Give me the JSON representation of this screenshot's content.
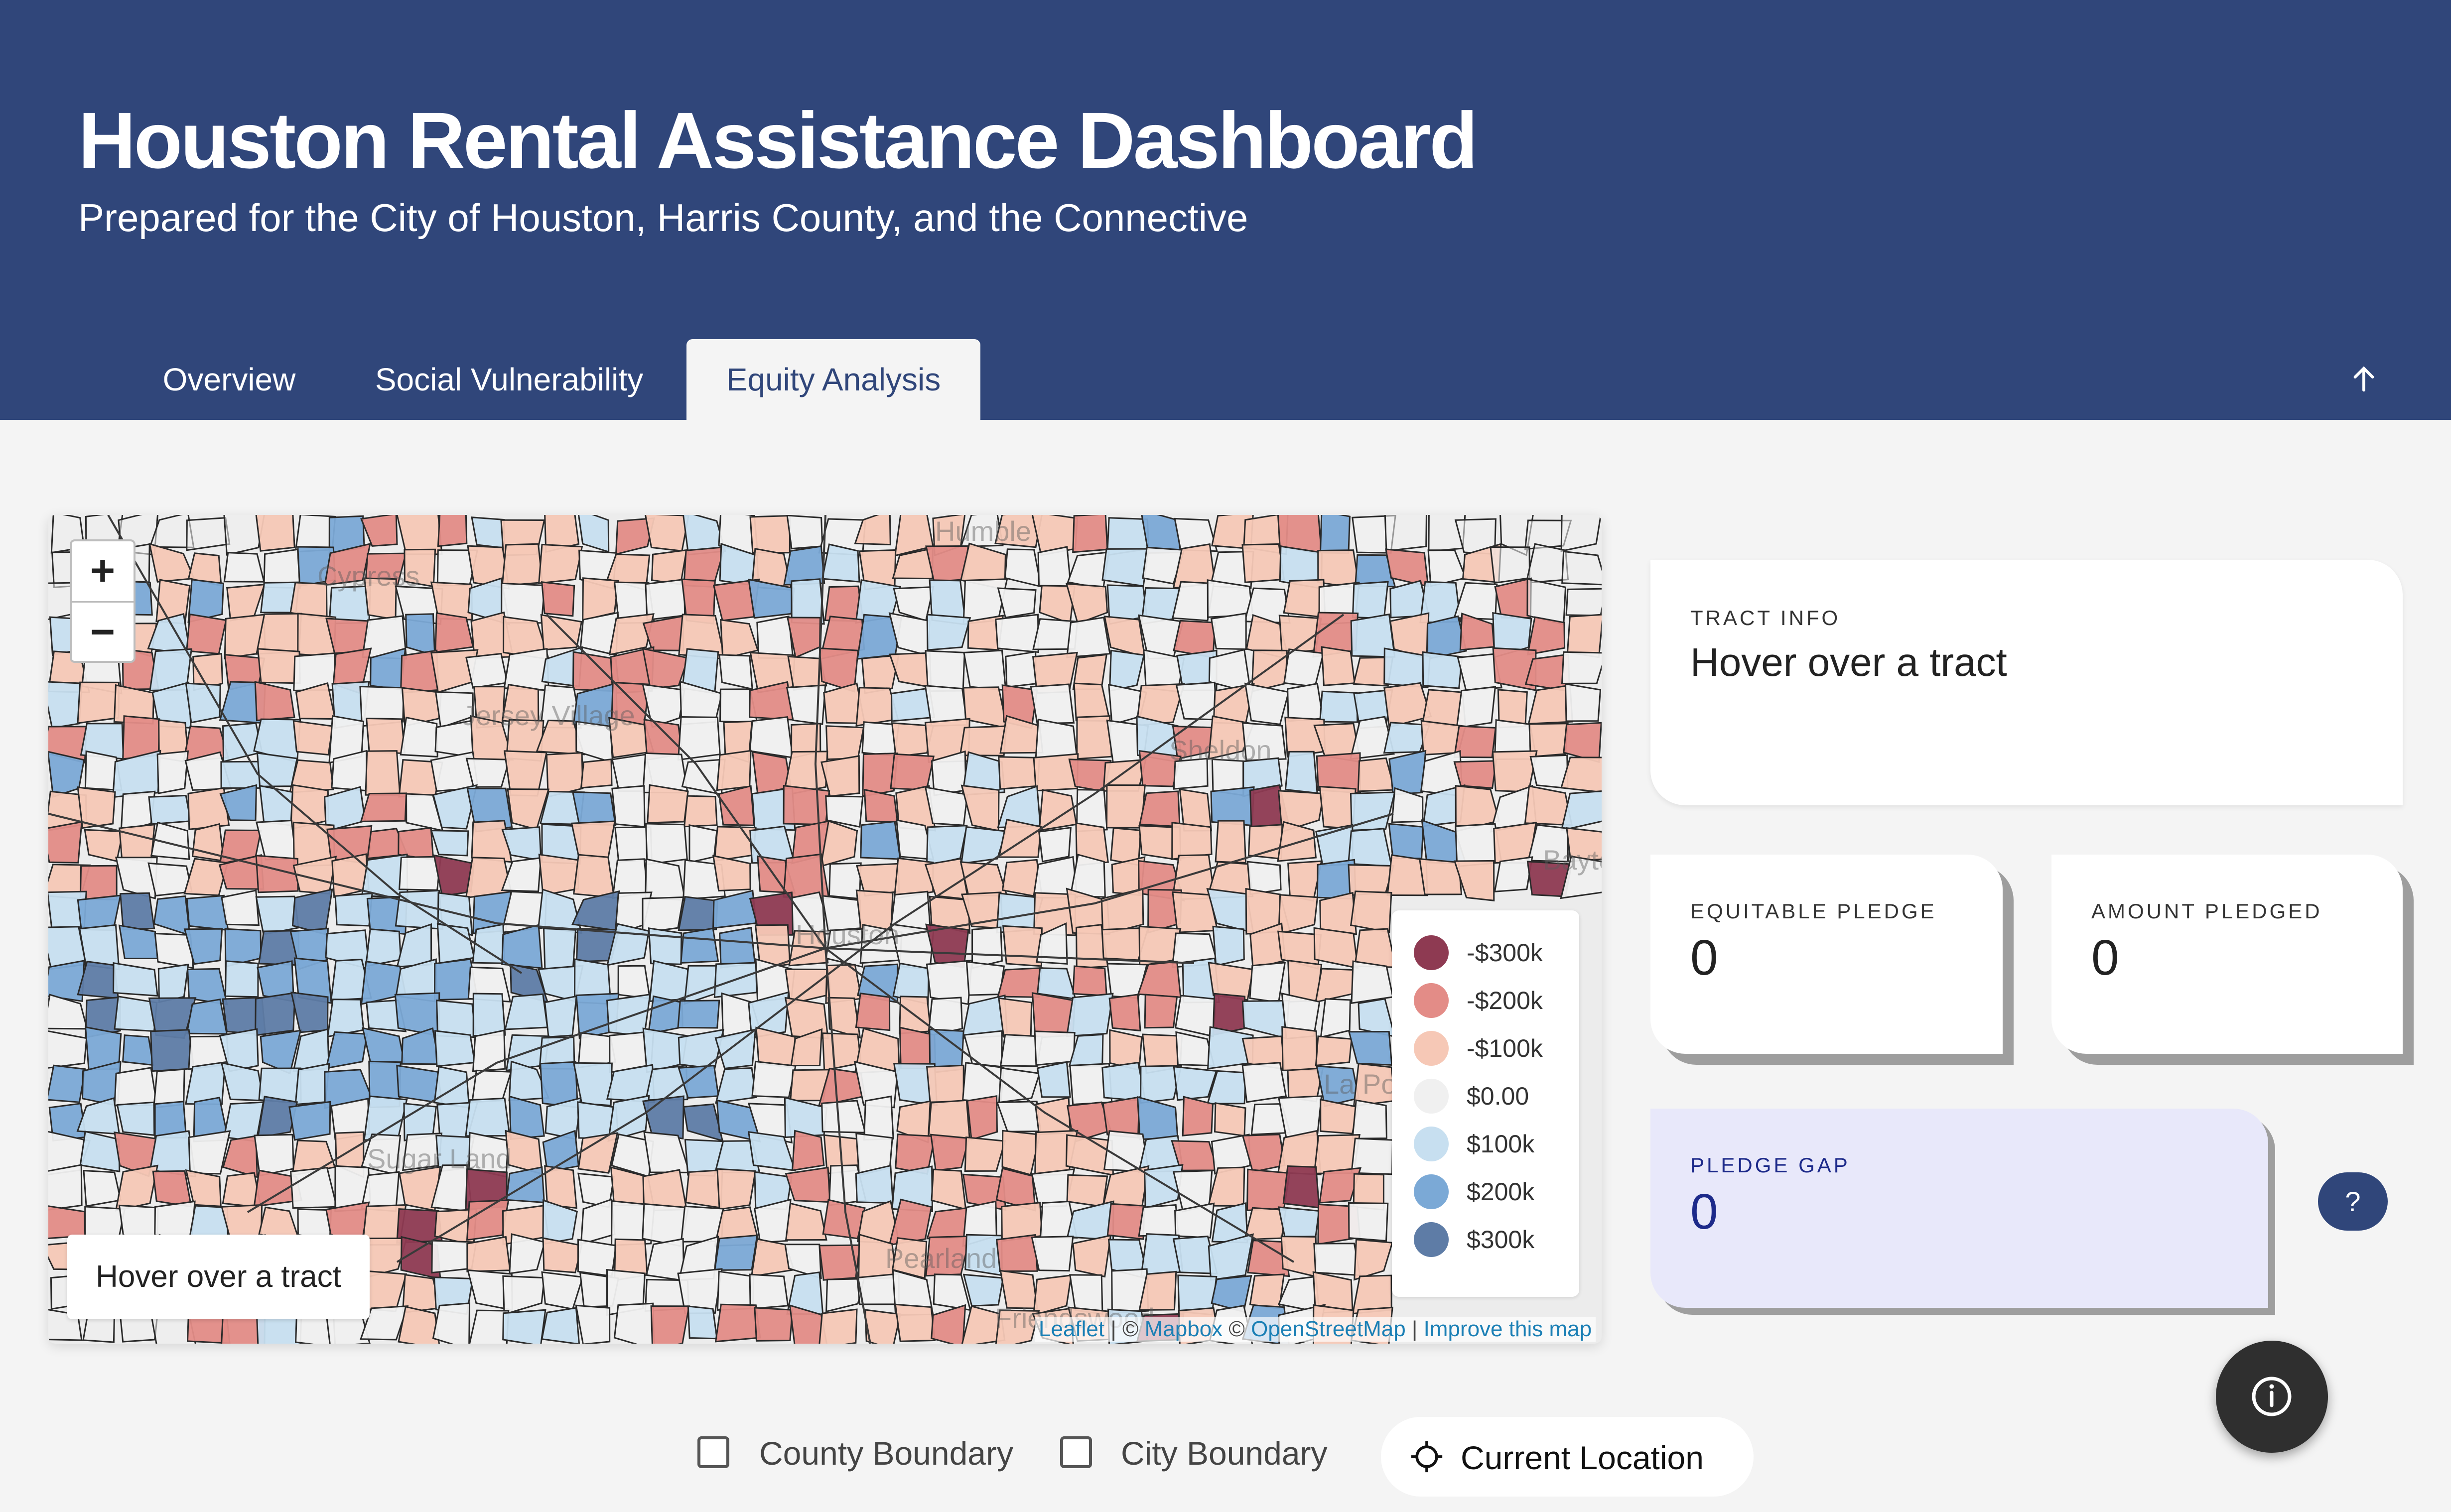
{
  "header": {
    "title": "Houston Rental Assistance Dashboard",
    "subtitle": "Prepared for the City of Houston, Harris County, and the Connective",
    "tabs": [
      {
        "label": "Overview",
        "active": false
      },
      {
        "label": "Social Vulnerability",
        "active": false
      },
      {
        "label": "Equity Analysis",
        "active": true
      }
    ],
    "scroll_top_icon": "arrow-up-icon"
  },
  "map": {
    "zoom_in": "+",
    "zoom_out": "−",
    "hover_text": "Hover over a tract",
    "place_labels": [
      "Humble",
      "Sheldon",
      "Sugar Land",
      "Pearland",
      "Cypress",
      "Jersey Village",
      "Houston",
      "La Porte",
      "Baytown",
      "Friendswood"
    ],
    "legend": [
      {
        "label": "-$300k",
        "color": "#8e3a52"
      },
      {
        "label": "-$200k",
        "color": "#e38c87"
      },
      {
        "label": "-$100k",
        "color": "#f6c8b6"
      },
      {
        "label": "$0.00",
        "color": "#f0f0f0"
      },
      {
        "label": "$100k",
        "color": "#c7dff0"
      },
      {
        "label": "$200k",
        "color": "#7ba9d6"
      },
      {
        "label": "$300k",
        "color": "#5e7ca6"
      }
    ],
    "attribution": {
      "leaflet": "Leaflet",
      "sep1": " | © ",
      "mapbox": "Mapbox",
      "sep2": " © ",
      "osm": "OpenStreetMap",
      "sep3": " | ",
      "improve": "Improve this map"
    }
  },
  "cards": {
    "tract_info": {
      "label": "TRACT INFO",
      "value": "Hover over a tract"
    },
    "equitable_pledge": {
      "label": "EQUITABLE PLEDGE",
      "value": "0"
    },
    "amount_pledged": {
      "label": "AMOUNT PLEDGED",
      "value": "0"
    },
    "pledge_gap": {
      "label": "PLEDGE GAP",
      "value": "0"
    },
    "help_button": "?",
    "info_icon": "info-icon"
  },
  "controls": {
    "county_boundary": "County Boundary",
    "city_boundary": "City Boundary",
    "current_location": "Current Location",
    "location_icon": "crosshair-icon"
  },
  "colors": {
    "header_bg": "#30467a",
    "page_bg": "#f4f4f4",
    "gap_card_bg": "#e8e8fa",
    "gap_text": "#1d2a8a"
  }
}
